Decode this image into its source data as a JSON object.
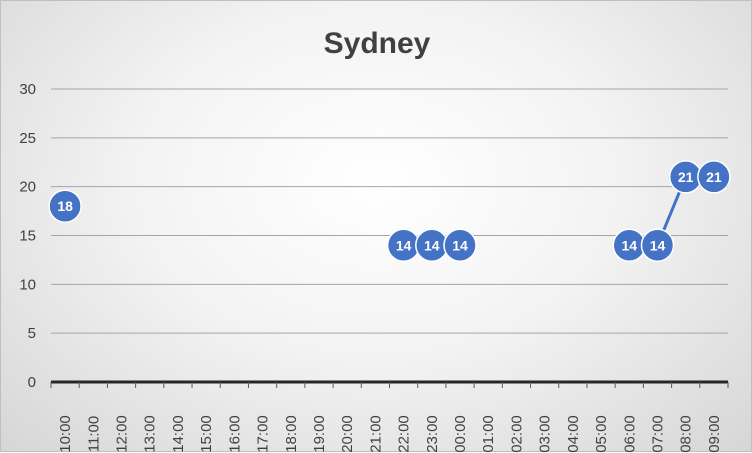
{
  "chart_data": {
    "type": "line",
    "title": "Sydney",
    "xlabel": "",
    "ylabel": "",
    "ylim": [
      0,
      30
    ],
    "yticks": [
      0,
      5,
      10,
      15,
      20,
      25,
      30
    ],
    "grid": true,
    "legend": "none",
    "categories": [
      "10:00",
      "11:00",
      "12:00",
      "13:00",
      "14:00",
      "15:00",
      "16:00",
      "17:00",
      "18:00",
      "19:00",
      "20:00",
      "21:00",
      "22:00",
      "23:00",
      "00:00",
      "01:00",
      "02:00",
      "03:00",
      "04:00",
      "05:00",
      "06:00",
      "07:00",
      "08:00",
      "09:00"
    ],
    "series": [
      {
        "values": [
          18,
          null,
          null,
          null,
          null,
          null,
          null,
          null,
          null,
          null,
          null,
          null,
          14,
          14,
          14,
          null,
          null,
          null,
          null,
          null,
          14,
          14,
          21,
          21
        ],
        "color": "#4472c4"
      }
    ]
  }
}
